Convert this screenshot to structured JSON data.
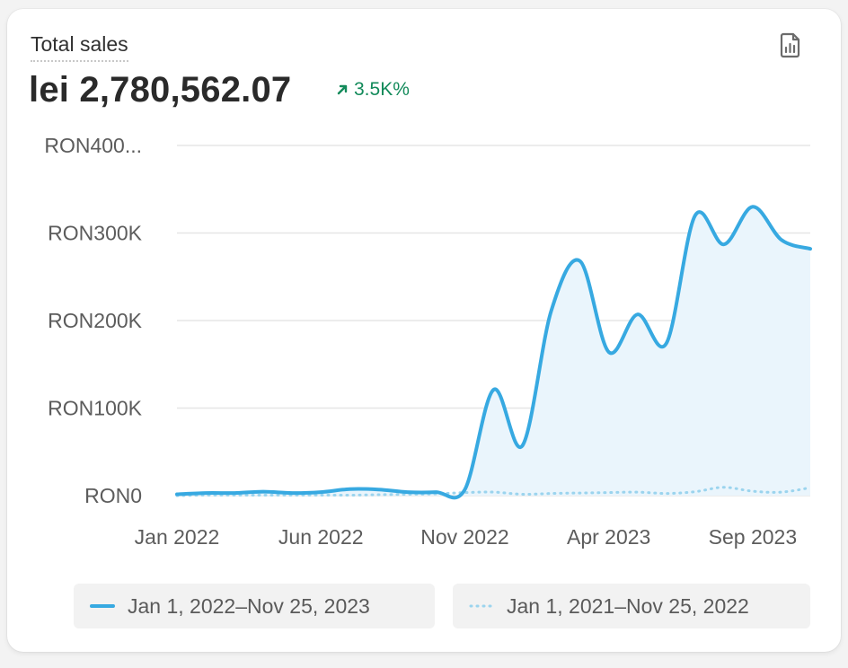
{
  "card": {
    "title": "Total sales",
    "metric": "lei 2,780,562.07",
    "change": "3.5K%",
    "change_color": "#128a5a",
    "export_icon": "report-icon"
  },
  "legend": {
    "current_label": "Jan 1, 2022–Nov 25, 2023",
    "previous_label": "Jan 1, 2021–Nov 25, 2022"
  },
  "chart_data": {
    "type": "line",
    "x_ticks": [
      "Jan 2022",
      "Jun 2022",
      "Nov 2022",
      "Apr 2023",
      "Sep 2023"
    ],
    "y_ticks": [
      "RON0",
      "RON100K",
      "RON200K",
      "RON300K",
      "RON400..."
    ],
    "ylim": [
      0,
      400000
    ],
    "grid": true,
    "legend_position": "bottom",
    "colors": {
      "current": "#37a9e1",
      "previous": "#9bd4ee",
      "fill": "#eaf5fc"
    },
    "x": [
      "Jan 2022",
      "Feb 2022",
      "Mar 2022",
      "Apr 2022",
      "May 2022",
      "Jun 2022",
      "Jul 2022",
      "Aug 2022",
      "Sep 2022",
      "Oct 2022",
      "Nov 2022",
      "Dec 2022",
      "Jan 2023",
      "Feb 2023",
      "Mar 2023",
      "Apr 2023",
      "May 2023",
      "Jun 2023",
      "Jul 2023",
      "Aug 2023",
      "Sep 2023",
      "Oct 2023",
      "Nov 2023"
    ],
    "series": [
      {
        "values": [
          1500,
          3000,
          3000,
          4500,
          3000,
          4000,
          7500,
          7000,
          4000,
          4000,
          7000,
          121000,
          57000,
          211000,
          268000,
          164000,
          207000,
          174000,
          320000,
          287000,
          330000,
          292000,
          282000
        ]
      },
      {
        "values": [
          0,
          500,
          500,
          500,
          500,
          500,
          500,
          1000,
          1500,
          2000,
          3500,
          4000,
          1500,
          2500,
          3000,
          3500,
          4000,
          2500,
          4500,
          9500,
          5000,
          4000,
          9000
        ]
      }
    ]
  }
}
